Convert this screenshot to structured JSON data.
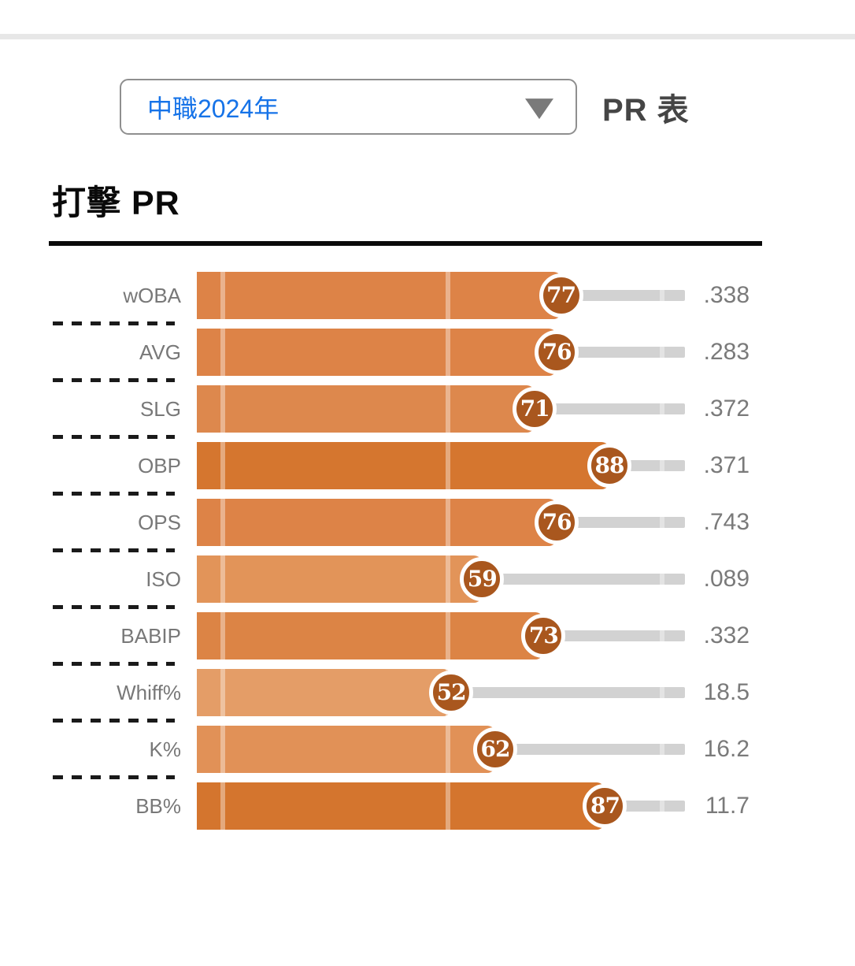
{
  "toolbar": {
    "season_select": {
      "value": "中職2024年"
    },
    "table_label": "PR 表"
  },
  "section": {
    "title": "打擊 PR"
  },
  "chart_data": {
    "type": "bar",
    "orientation": "horizontal",
    "title": "打擊 PR",
    "x_axis": {
      "min": 0,
      "max": 100,
      "gridlines": [
        0,
        50,
        100
      ],
      "grid_visible_as": "light streaks"
    },
    "rows": [
      {
        "label": "wOBA",
        "pr": 77,
        "value": ".338",
        "bar_color": "#dd8347"
      },
      {
        "label": "AVG",
        "pr": 76,
        "value": ".283",
        "bar_color": "#dd8347"
      },
      {
        "label": "SLG",
        "pr": 71,
        "value": ".372",
        "bar_color": "#dd884d"
      },
      {
        "label": "OBP",
        "pr": 88,
        "value": ".371",
        "bar_color": "#d5762f"
      },
      {
        "label": "OPS",
        "pr": 76,
        "value": ".743",
        "bar_color": "#dd8347"
      },
      {
        "label": "ISO",
        "pr": 59,
        "value": ".089",
        "bar_color": "#e29459"
      },
      {
        "label": "BABIP",
        "pr": 73,
        "value": ".332",
        "bar_color": "#dc8445"
      },
      {
        "label": "Whiff%",
        "pr": 52,
        "value": "18.5",
        "bar_color": "#e49d67"
      },
      {
        "label": "K%",
        "pr": 62,
        "value": "16.2",
        "bar_color": "#e19157"
      },
      {
        "label": "BB%",
        "pr": 87,
        "value": "11.7",
        "bar_color": "#d4752e"
      }
    ],
    "colors": {
      "marker_circle": "#a9571e",
      "track_gray": "#d2d2d2",
      "accent_blue": "#1673e8"
    }
  }
}
